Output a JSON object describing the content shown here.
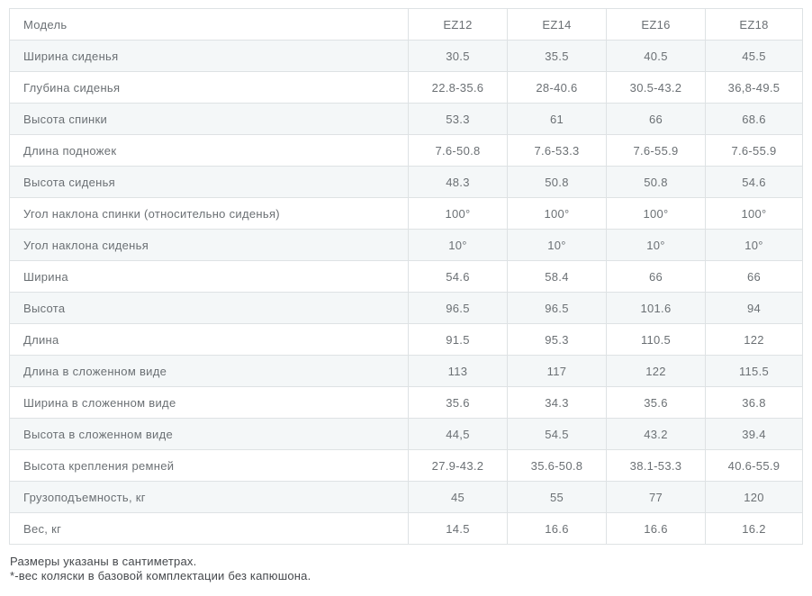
{
  "colors": {
    "row_shaded_bg": "#f4f7f8",
    "table_border": "#dee2e4",
    "table_text": "#6b7074",
    "footnote_text": "#46494d"
  },
  "table": {
    "header": {
      "label": "Модель",
      "columns": [
        "EZ12",
        "EZ14",
        "EZ16",
        "EZ18"
      ]
    },
    "rows": [
      {
        "label": "Ширина сиденья",
        "values": [
          "30.5",
          "35.5",
          "40.5",
          "45.5"
        ]
      },
      {
        "label": "Глубина сиденья",
        "values": [
          "22.8-35.6",
          "28-40.6",
          "30.5-43.2",
          "36,8-49.5"
        ]
      },
      {
        "label": "Высота спинки",
        "values": [
          "53.3",
          "61",
          "66",
          "68.6"
        ]
      },
      {
        "label": "Длина подножек",
        "values": [
          "7.6-50.8",
          "7.6-53.3",
          "7.6-55.9",
          "7.6-55.9"
        ]
      },
      {
        "label": "Высота сиденья",
        "values": [
          "48.3",
          "50.8",
          "50.8",
          "54.6"
        ]
      },
      {
        "label": "Угол наклона спинки (относительно сиденья)",
        "values": [
          "100°",
          "100°",
          "100°",
          "100°"
        ]
      },
      {
        "label": "Угол наклона сиденья",
        "values": [
          "10°",
          "10°",
          "10°",
          "10°"
        ]
      },
      {
        "label": "Ширина",
        "values": [
          "54.6",
          "58.4",
          "66",
          "66"
        ]
      },
      {
        "label": "Высота",
        "values": [
          "96.5",
          "96.5",
          "101.6",
          "94"
        ]
      },
      {
        "label": "Длина",
        "values": [
          "91.5",
          "95.3",
          "110.5",
          "122"
        ]
      },
      {
        "label": "Длина в сложенном виде",
        "values": [
          "113",
          "117",
          "122",
          "115.5"
        ]
      },
      {
        "label": "Ширина в сложенном виде",
        "values": [
          "35.6",
          "34.3",
          "35.6",
          "36.8"
        ]
      },
      {
        "label": "Высота в сложенном виде",
        "values": [
          "44,5",
          "54.5",
          "43.2",
          "39.4"
        ]
      },
      {
        "label": "Высота крепления ремней",
        "values": [
          "27.9-43.2",
          "35.6-50.8",
          "38.1-53.3",
          "40.6-55.9"
        ]
      },
      {
        "label": "Грузоподъемность, кг",
        "values": [
          "45",
          "55",
          "77",
          "120"
        ]
      },
      {
        "label": "Вес, кг",
        "values": [
          "14.5",
          "16.6",
          "16.6",
          "16.2"
        ]
      }
    ]
  },
  "footnotes": [
    "Размеры указаны в сантиметрах.",
    "*-вес коляски в базовой комплектации без капюшона."
  ]
}
